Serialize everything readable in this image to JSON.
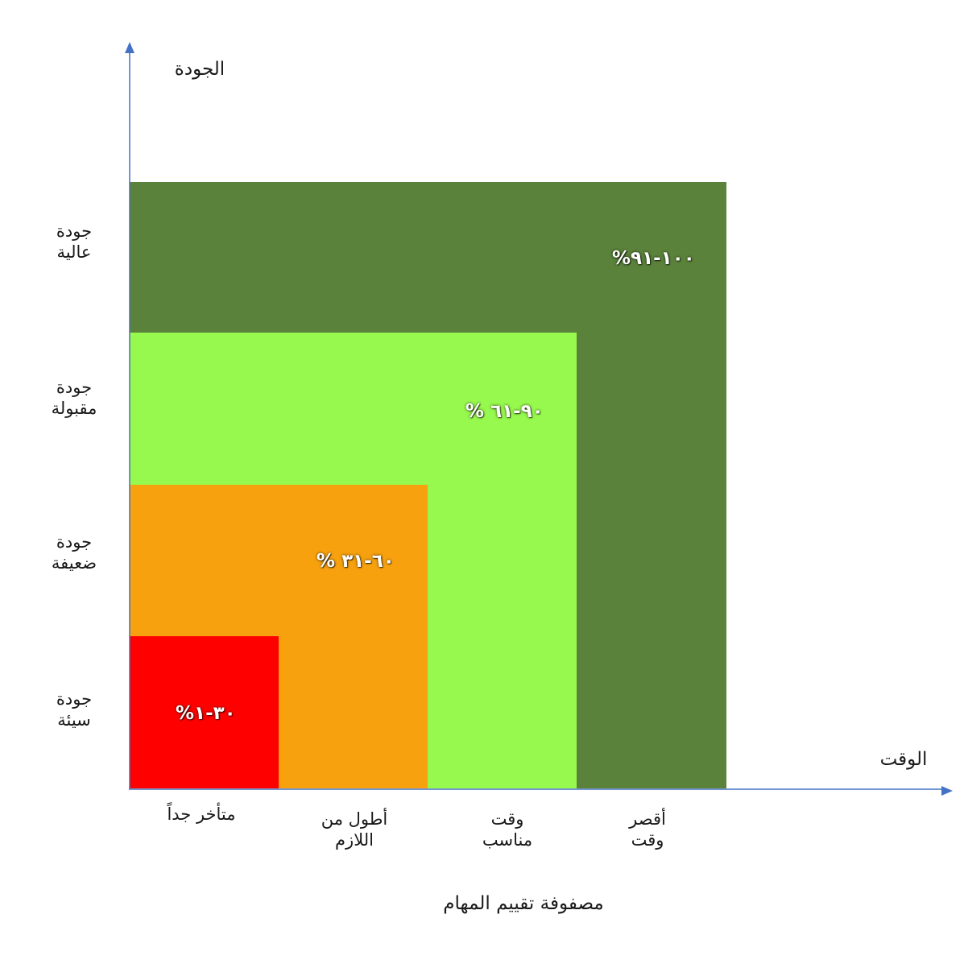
{
  "axes": {
    "y_title": "الجودة",
    "x_title": "الوقت",
    "color": "#4472C4"
  },
  "caption": "مصفوفة تقييم المهام",
  "quality_levels": [
    {
      "line1": "جودة",
      "line2": "عالية"
    },
    {
      "line1": "جودة",
      "line2": "مقبولة"
    },
    {
      "line1": "جودة",
      "line2": "ضعيفة"
    },
    {
      "line1": "جودة",
      "line2": "سيئة"
    }
  ],
  "time_levels": [
    {
      "line1": "متأخر جداً",
      "line2": ""
    },
    {
      "line1": "أطول من",
      "line2": "اللازم"
    },
    {
      "line1": "وقت",
      "line2": "مناسب"
    },
    {
      "line1": "أقصر",
      "line2": "وقت"
    }
  ],
  "zones": [
    {
      "label": "%١٠٠-٩١",
      "color": "#5A823A"
    },
    {
      "label": "% ٩٠-٦١",
      "color": "#97F84D"
    },
    {
      "label": "% ٦٠-٣١",
      "color": "#F7A10F"
    },
    {
      "label": "%٣٠-١",
      "color": "#FF0000"
    }
  ]
}
